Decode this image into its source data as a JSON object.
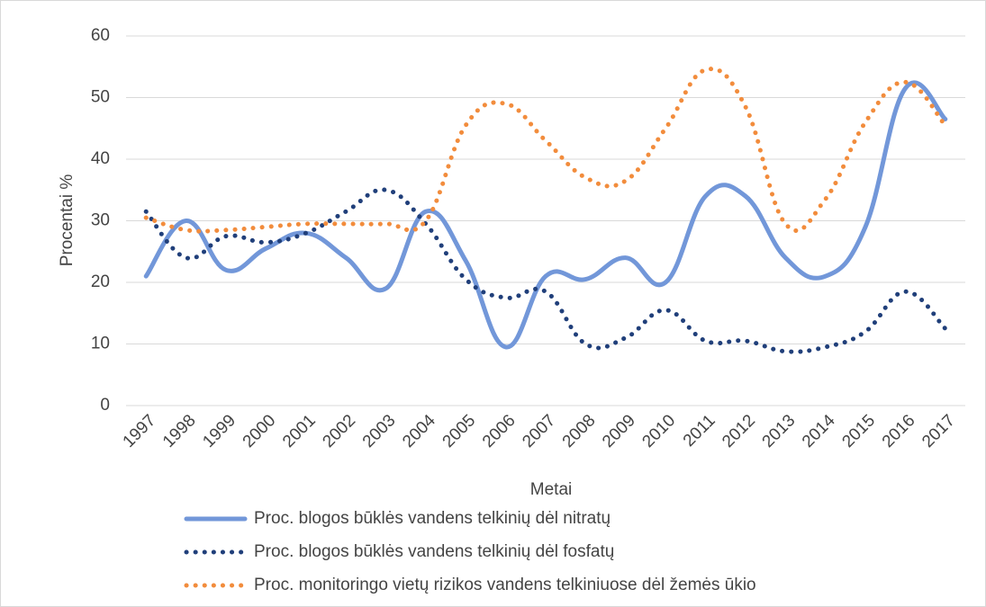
{
  "chart_data": {
    "type": "line",
    "x_label": "Metai",
    "y_label": "Procentai %",
    "categories": [
      "1997",
      "1998",
      "1999",
      "2000",
      "2001",
      "2002",
      "2003",
      "2004",
      "2005",
      "2006",
      "2007",
      "2008",
      "2009",
      "2010",
      "2011",
      "2012",
      "2013",
      "2014",
      "2015",
      "2016",
      "2017"
    ],
    "series": [
      {
        "name": "Proc. blogos būklės vandens telkinių dėl nitratų",
        "color": "#7297d9",
        "style": "solid",
        "values": [
          21,
          30,
          22,
          25.5,
          28,
          24,
          19,
          31.5,
          23.5,
          9.5,
          21,
          20.5,
          24,
          20,
          34,
          34,
          24,
          21,
          29,
          51.5,
          46.5
        ]
      },
      {
        "name": "Proc. blogos būklės vandens telkinių dėl fosfatų",
        "color": "#203f7a",
        "style": "dotted",
        "values": [
          31.5,
          24,
          27.5,
          26.5,
          28,
          31.5,
          35,
          29.5,
          20.5,
          17.5,
          18.5,
          10,
          11,
          15.5,
          10.5,
          10.5,
          8.8,
          9.5,
          12,
          18.5,
          12.5
        ]
      },
      {
        "name": "Proc. monitoringo vietų rizikos vandens telkiniuose dėl žemės ūkio",
        "color": "#f28c3c",
        "style": "dotted",
        "values": [
          30.5,
          28.5,
          28.5,
          29,
          29.5,
          29.5,
          29.5,
          30,
          45.5,
          49,
          43,
          37,
          36.5,
          45,
          54.5,
          48.5,
          29.5,
          33.5,
          46,
          52.5,
          45.5
        ]
      }
    ],
    "ylim": [
      0,
      60
    ],
    "yticks": [
      0,
      10,
      20,
      30,
      40,
      50,
      60
    ],
    "grid": true,
    "legend": "bottom"
  }
}
